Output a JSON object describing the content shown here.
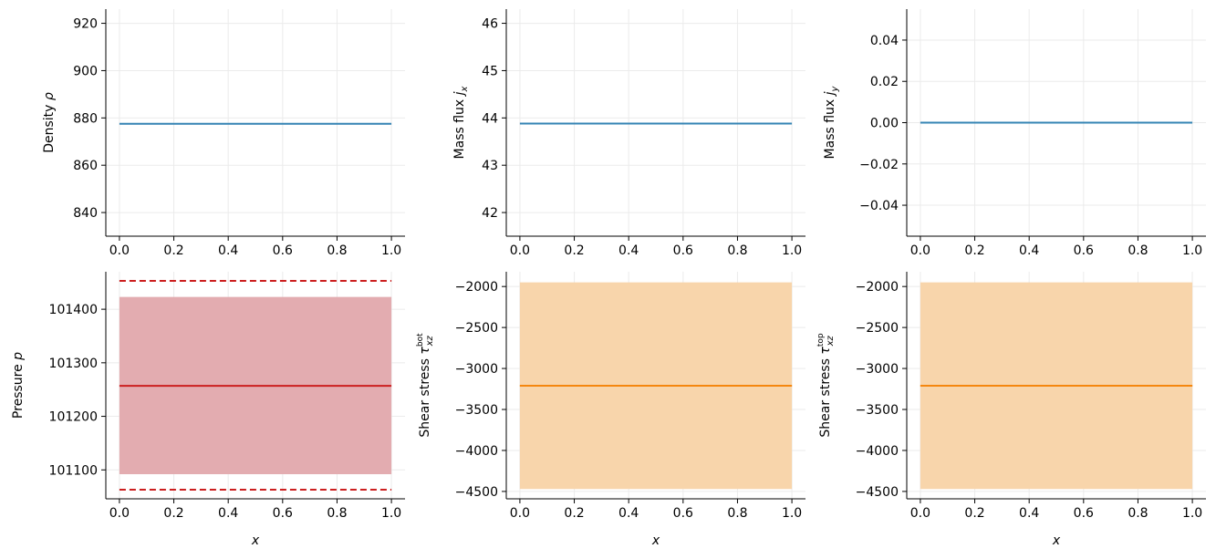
{
  "figure": {
    "colors": {
      "blue": "#3584b4",
      "red": "#cc1f1f",
      "red_band": "#e3acb0",
      "orange": "#f5870f",
      "orange_band": "#f8d5ab",
      "grid": "#ebebeb",
      "axis": "#000000"
    }
  },
  "chart_data": [
    {
      "id": "density",
      "type": "line",
      "ylabel": {
        "text": "Density ",
        "sym": "ρ",
        "sub": "",
        "sup": ""
      },
      "xlabel": "",
      "xlim": [
        -0.05,
        1.05
      ],
      "ylim": [
        830,
        926
      ],
      "xticks": [
        0.0,
        0.2,
        0.4,
        0.6,
        0.8,
        1.0
      ],
      "xtick_labels": [
        "0.0",
        "0.2",
        "0.4",
        "0.6",
        "0.8",
        "1.0"
      ],
      "yticks": [
        840,
        860,
        880,
        900,
        920
      ],
      "ytick_labels": [
        "840",
        "860",
        "880",
        "900",
        "920"
      ],
      "grid": true,
      "series": [
        {
          "kind": "line",
          "x": [
            0.0,
            1.0
          ],
          "y": [
            877.5,
            877.5
          ],
          "color": "blue"
        }
      ]
    },
    {
      "id": "mass-flux-x",
      "type": "line",
      "ylabel": {
        "text": "Mass flux ",
        "sym": "j",
        "sub": "x",
        "sup": ""
      },
      "xlabel": "",
      "xlim": [
        -0.05,
        1.05
      ],
      "ylim": [
        41.5,
        46.3
      ],
      "xticks": [
        0.0,
        0.2,
        0.4,
        0.6,
        0.8,
        1.0
      ],
      "xtick_labels": [
        "0.0",
        "0.2",
        "0.4",
        "0.6",
        "0.8",
        "1.0"
      ],
      "yticks": [
        42,
        43,
        44,
        45,
        46
      ],
      "ytick_labels": [
        "42",
        "43",
        "44",
        "45",
        "46"
      ],
      "grid": true,
      "series": [
        {
          "kind": "line",
          "x": [
            0.0,
            1.0
          ],
          "y": [
            43.88,
            43.88
          ],
          "color": "blue"
        }
      ]
    },
    {
      "id": "mass-flux-y",
      "type": "line",
      "ylabel": {
        "text": "Mass flux ",
        "sym": "j",
        "sub": "y",
        "sup": ""
      },
      "xlabel": "",
      "xlim": [
        -0.05,
        1.05
      ],
      "ylim": [
        -0.055,
        0.055
      ],
      "xticks": [
        0.0,
        0.2,
        0.4,
        0.6,
        0.8,
        1.0
      ],
      "xtick_labels": [
        "0.0",
        "0.2",
        "0.4",
        "0.6",
        "0.8",
        "1.0"
      ],
      "yticks": [
        -0.04,
        -0.02,
        0.0,
        0.02,
        0.04
      ],
      "ytick_labels": [
        "−0.04",
        "−0.02",
        "0.00",
        "0.02",
        "0.04"
      ],
      "grid": true,
      "series": [
        {
          "kind": "line",
          "x": [
            0.0,
            1.0
          ],
          "y": [
            0.0,
            0.0
          ],
          "color": "blue"
        }
      ]
    },
    {
      "id": "pressure",
      "type": "line",
      "ylabel": {
        "text": "Pressure ",
        "sym": "p",
        "sub": "",
        "sup": ""
      },
      "xlabel": "x",
      "xlim": [
        -0.05,
        1.05
      ],
      "ylim": [
        101046,
        101470
      ],
      "xticks": [
        0.0,
        0.2,
        0.4,
        0.6,
        0.8,
        1.0
      ],
      "xtick_labels": [
        "0.0",
        "0.2",
        "0.4",
        "0.6",
        "0.8",
        "1.0"
      ],
      "yticks": [
        101100,
        101200,
        101300,
        101400
      ],
      "ytick_labels": [
        "101100",
        "101200",
        "101300",
        "101400"
      ],
      "grid": true,
      "series": [
        {
          "kind": "band",
          "x": [
            0.0,
            1.0
          ],
          "upper": [
            101423,
            101423
          ],
          "lower": [
            101092,
            101092
          ],
          "color": "red_band"
        },
        {
          "kind": "line",
          "x": [
            0.0,
            1.0
          ],
          "y": [
            101257,
            101257
          ],
          "color": "red"
        },
        {
          "kind": "dashed",
          "x": [
            0.0,
            1.0
          ],
          "y": [
            101453,
            101453
          ],
          "color": "red"
        },
        {
          "kind": "dashed",
          "x": [
            0.0,
            1.0
          ],
          "y": [
            101063,
            101063
          ],
          "color": "red"
        }
      ]
    },
    {
      "id": "shear-stress-bot",
      "type": "line",
      "ylabel": {
        "text": "Shear stress ",
        "sym": "τ",
        "sub": "xz",
        "sup": "bot"
      },
      "xlabel": "x",
      "xlim": [
        -0.05,
        1.05
      ],
      "ylim": [
        -4590,
        -1820
      ],
      "xticks": [
        0.0,
        0.2,
        0.4,
        0.6,
        0.8,
        1.0
      ],
      "xtick_labels": [
        "0.0",
        "0.2",
        "0.4",
        "0.6",
        "0.8",
        "1.0"
      ],
      "yticks": [
        -4500,
        -4000,
        -3500,
        -3000,
        -2500,
        -2000
      ],
      "ytick_labels": [
        "−4500",
        "−4000",
        "−3500",
        "−3000",
        "−2500",
        "−2000"
      ],
      "grid": true,
      "series": [
        {
          "kind": "band",
          "x": [
            0.0,
            1.0
          ],
          "upper": [
            -1950,
            -1950
          ],
          "lower": [
            -4470,
            -4470
          ],
          "color": "orange_band"
        },
        {
          "kind": "line",
          "x": [
            0.0,
            1.0
          ],
          "y": [
            -3210,
            -3210
          ],
          "color": "orange"
        },
        {
          "kind": "dashed",
          "x": [
            0.0,
            1.0
          ],
          "y": [
            -3210,
            -3210
          ],
          "color": "orange"
        }
      ]
    },
    {
      "id": "shear-stress-top",
      "type": "line",
      "ylabel": {
        "text": "Shear stress ",
        "sym": "τ",
        "sub": "xz",
        "sup": "top"
      },
      "xlabel": "x",
      "xlim": [
        -0.05,
        1.05
      ],
      "ylim": [
        -4590,
        -1820
      ],
      "xticks": [
        0.0,
        0.2,
        0.4,
        0.6,
        0.8,
        1.0
      ],
      "xtick_labels": [
        "0.0",
        "0.2",
        "0.4",
        "0.6",
        "0.8",
        "1.0"
      ],
      "yticks": [
        -4500,
        -4000,
        -3500,
        -3000,
        -2500,
        -2000
      ],
      "ytick_labels": [
        "−4500",
        "−4000",
        "−3500",
        "−3000",
        "−2500",
        "−2000"
      ],
      "grid": true,
      "series": [
        {
          "kind": "band",
          "x": [
            0.0,
            1.0
          ],
          "upper": [
            -1950,
            -1950
          ],
          "lower": [
            -4470,
            -4470
          ],
          "color": "orange_band"
        },
        {
          "kind": "line",
          "x": [
            0.0,
            1.0
          ],
          "y": [
            -3210,
            -3210
          ],
          "color": "orange"
        },
        {
          "kind": "dashed",
          "x": [
            0.0,
            1.0
          ],
          "y": [
            -3210,
            -3210
          ],
          "color": "orange"
        }
      ]
    }
  ]
}
